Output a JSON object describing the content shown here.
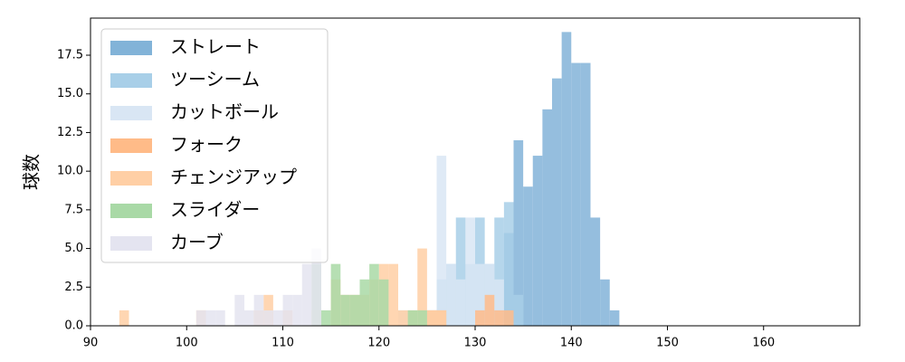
{
  "chart_data": {
    "type": "histogram",
    "ylabel": "球数",
    "xlim": [
      90,
      170
    ],
    "xticks": [
      90,
      100,
      110,
      120,
      130,
      140,
      150,
      160
    ],
    "ylim": [
      0,
      19.9
    ],
    "yticks": [
      {
        "value": 0,
        "label": "0.0"
      },
      {
        "value": 2.5,
        "label": "2.5"
      },
      {
        "value": 5,
        "label": "5.0"
      },
      {
        "value": 7.5,
        "label": "7.5"
      },
      {
        "value": 10,
        "label": "10.0"
      },
      {
        "value": 12.5,
        "label": "12.5"
      },
      {
        "value": 15,
        "label": "15.0"
      },
      {
        "value": 17.5,
        "label": "17.5"
      }
    ],
    "legend": "upper left",
    "series": [
      {
        "name": "ストレート",
        "color": "#82b3d8",
        "bins": [
          132,
          133,
          134,
          135,
          136,
          137,
          138,
          139,
          140,
          141,
          142,
          143,
          144,
          145
        ],
        "values": [
          1,
          6,
          12,
          9,
          11,
          14,
          16,
          19,
          17,
          17,
          7,
          3,
          1
        ]
      },
      {
        "name": "ツーシーム",
        "color": "#a8cfe8",
        "bins": [
          125,
          126,
          127,
          128,
          129,
          130,
          131,
          132,
          133,
          134,
          135
        ],
        "values": [
          1,
          3,
          4,
          7,
          4,
          7,
          4,
          7,
          8,
          2
        ]
      },
      {
        "name": "カットボール",
        "color": "#d9e6f4",
        "bins": [
          122,
          123,
          124,
          125,
          126,
          127,
          128,
          129,
          130,
          131,
          132,
          133
        ],
        "values": [
          1,
          1,
          1,
          1,
          11,
          4,
          3,
          7,
          4,
          4,
          3
        ]
      },
      {
        "name": "フォーク",
        "color": "#ffbb88",
        "bins": [
          125,
          126,
          127,
          128,
          129,
          130,
          131,
          132,
          133,
          134
        ],
        "values": [
          1,
          1,
          0,
          0,
          0,
          1,
          2,
          1,
          1
        ]
      },
      {
        "name": "チェンジアップ",
        "color": "#ffcfa5",
        "bins": [
          93,
          94,
          95,
          96,
          97,
          98,
          99,
          100,
          101,
          102,
          103,
          104,
          105,
          106,
          107,
          108,
          109,
          110,
          111,
          112,
          113,
          114,
          115,
          116,
          117,
          118,
          119,
          120,
          121,
          122,
          123,
          124,
          125,
          126,
          127
        ],
        "values": [
          1,
          0,
          0,
          0,
          0,
          0,
          0,
          0,
          1,
          0,
          0,
          0,
          0,
          0,
          1,
          2,
          0,
          1,
          0,
          0,
          1,
          0,
          3,
          2,
          2,
          2,
          3,
          4,
          4,
          1,
          1,
          5,
          1,
          1
        ]
      },
      {
        "name": "スライダー",
        "color": "#a9d9a6",
        "bins": [
          113,
          114,
          115,
          116,
          117,
          118,
          119,
          120,
          121,
          122,
          123,
          124,
          125
        ],
        "values": [
          4,
          1,
          4,
          2,
          2,
          3,
          4,
          3,
          0,
          0,
          1,
          1
        ]
      },
      {
        "name": "カーブ",
        "color": "#e4e4f0",
        "bins": [
          101,
          102,
          103,
          104,
          105,
          106,
          107,
          108,
          109,
          110,
          111,
          112,
          113,
          114
        ],
        "values": [
          1,
          1,
          1,
          0,
          2,
          1,
          2,
          1,
          1,
          2,
          2,
          4,
          5
        ]
      }
    ]
  }
}
